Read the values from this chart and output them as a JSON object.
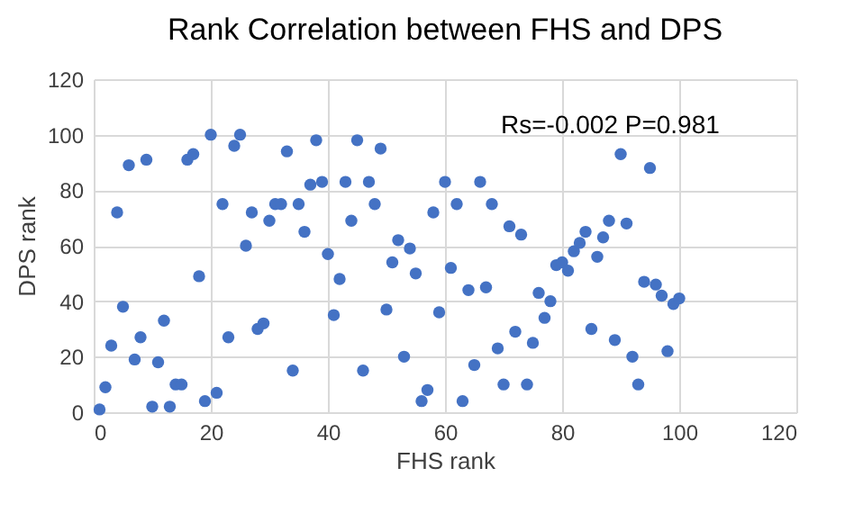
{
  "chart_data": {
    "type": "scatter",
    "title": "Rank Correlation between FHS and DPS",
    "xlabel": "FHS rank",
    "ylabel": "DPS rank",
    "annotations": [
      "Rs=-0.002 P=0.981"
    ],
    "x": [
      1,
      2,
      3,
      4,
      5,
      6,
      7,
      8,
      9,
      10,
      11,
      12,
      13,
      14,
      15,
      16,
      17,
      18,
      19,
      20,
      21,
      22,
      23,
      24,
      25,
      26,
      27,
      28,
      29,
      30,
      31,
      32,
      33,
      34,
      35,
      36,
      37,
      38,
      39,
      40,
      41,
      42,
      43,
      44,
      45,
      46,
      47,
      48,
      49,
      50,
      51,
      52,
      53,
      54,
      55,
      56,
      57,
      58,
      59,
      60,
      61,
      62,
      63,
      64,
      65,
      66,
      67,
      68,
      69,
      70,
      71,
      72,
      73,
      74,
      75,
      76,
      77,
      78,
      79,
      80,
      81,
      82,
      83,
      84,
      85,
      86,
      87,
      88,
      89,
      90,
      91,
      92,
      93,
      94,
      95,
      96,
      97,
      98,
      99,
      100
    ],
    "series": [
      {
        "color": "#4472c4",
        "values": [
          1,
          9,
          24,
          72,
          38,
          89,
          19,
          27,
          91,
          2,
          18,
          33,
          2,
          10,
          10,
          91,
          93,
          49,
          4,
          100,
          7,
          75,
          27,
          96,
          100,
          60,
          72,
          30,
          32,
          69,
          75,
          75,
          94,
          15,
          75,
          65,
          82,
          98,
          83,
          57,
          35,
          48,
          83,
          69,
          98,
          15,
          83,
          75,
          95,
          37,
          54,
          62,
          20,
          59,
          50,
          4,
          8,
          72,
          36,
          83,
          52,
          75,
          4,
          44,
          17,
          83,
          45,
          75,
          23,
          10,
          67,
          29,
          64,
          10,
          25,
          43,
          34,
          40,
          53,
          54,
          51,
          58,
          61,
          65,
          30,
          56,
          63,
          69,
          26,
          93,
          68,
          20,
          10,
          47,
          88,
          46,
          42,
          22,
          39,
          41
        ]
      }
    ],
    "xlim": [
      0,
      120
    ],
    "ylim": [
      0,
      120
    ],
    "xticks": [
      0,
      20,
      40,
      60,
      80,
      100,
      120
    ],
    "yticks": [
      0,
      20,
      40,
      60,
      80,
      100,
      120
    ],
    "grid": true,
    "marker": "circle",
    "legend": false
  }
}
